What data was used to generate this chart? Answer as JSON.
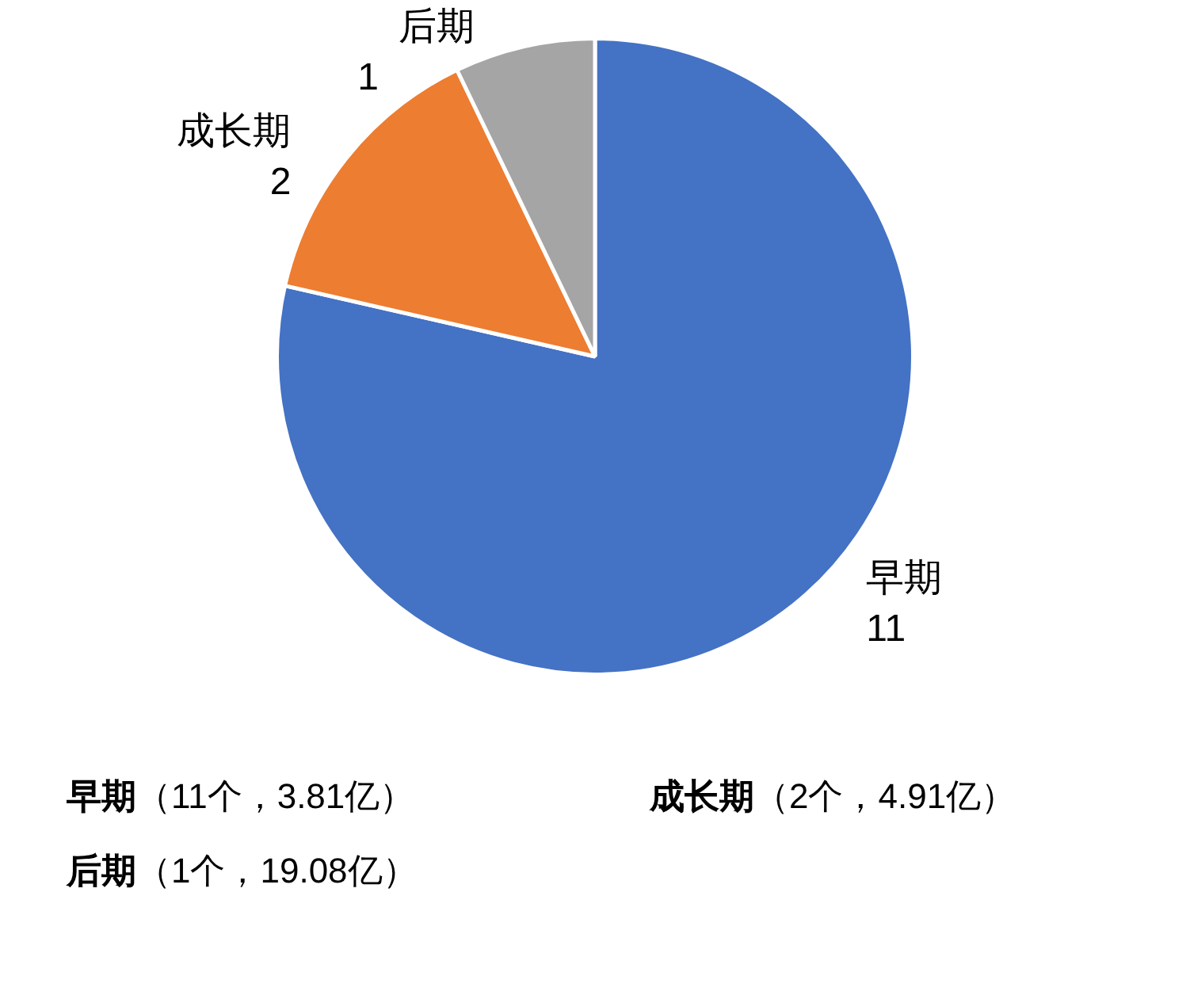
{
  "chart_data": {
    "type": "pie",
    "categories": [
      "早期",
      "成长期",
      "后期"
    ],
    "values": [
      11,
      2,
      1
    ],
    "colors": [
      "#4472c4",
      "#ed7d31",
      "#a5a5a5"
    ],
    "data_labels": true,
    "legend": false,
    "annotations": [
      "早期（11个，3.81亿）",
      "成长期（2个，4.91亿）",
      "后期（1个，19.08亿）"
    ]
  }
}
